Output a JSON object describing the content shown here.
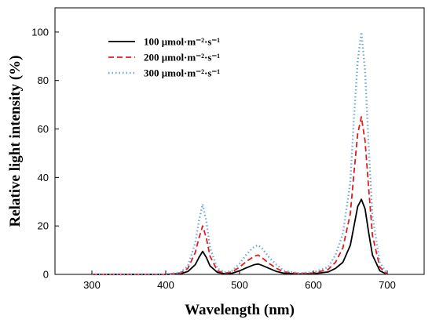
{
  "chart_data": {
    "type": "line",
    "xlabel": "Wavelength (nm)",
    "ylabel": "Relative light intensity (%)",
    "xlim": [
      250,
      750
    ],
    "ylim": [
      0,
      110
    ],
    "xticks": [
      300,
      400,
      500,
      600,
      700
    ],
    "yticks": [
      0,
      20,
      40,
      60,
      80,
      100
    ],
    "grid": false,
    "legend_position": "top-left",
    "x": [
      300,
      400,
      420,
      430,
      440,
      445,
      450,
      455,
      460,
      470,
      480,
      490,
      500,
      510,
      520,
      525,
      530,
      540,
      550,
      560,
      580,
      600,
      620,
      630,
      640,
      650,
      655,
      660,
      665,
      670,
      675,
      680,
      690,
      700
    ],
    "series": [
      {
        "name": "100 μmol·m⁻²·s⁻¹",
        "color": "#000000",
        "style": "solid",
        "values": [
          0,
          0,
          0.3,
          1.2,
          4,
          7,
          9.5,
          7,
          3.5,
          0.8,
          0.3,
          0.5,
          1.5,
          2.8,
          4,
          4.3,
          3.8,
          2.5,
          1.2,
          0.5,
          0.2,
          0.3,
          1,
          2.5,
          5,
          12,
          20,
          28,
          31,
          27,
          17,
          8,
          1.5,
          0
        ]
      },
      {
        "name": "200 μmol·m⁻²·s⁻¹",
        "color": "#e41a1c",
        "style": "dashed",
        "values": [
          0,
          0,
          0.6,
          2.5,
          9,
          15,
          20,
          15,
          7.5,
          1.5,
          0.5,
          1,
          3,
          5.5,
          7.5,
          8,
          7,
          4.5,
          2.5,
          1,
          0.4,
          0.6,
          2,
          5,
          11,
          25,
          42,
          58,
          65,
          55,
          35,
          16,
          3,
          0
        ]
      },
      {
        "name": "300 μmol·m⁻²·s⁻¹",
        "color": "#6fa8dc",
        "style": "dotted",
        "values": [
          0,
          0,
          0.8,
          3.5,
          13,
          22,
          29,
          22,
          11,
          2.5,
          0.8,
          1.5,
          4.5,
          8.5,
          11.5,
          12,
          11,
          7,
          4,
          1.5,
          0.5,
          0.9,
          3,
          8,
          17,
          38,
          65,
          88,
          100,
          84,
          52,
          24,
          5,
          0
        ]
      }
    ]
  }
}
